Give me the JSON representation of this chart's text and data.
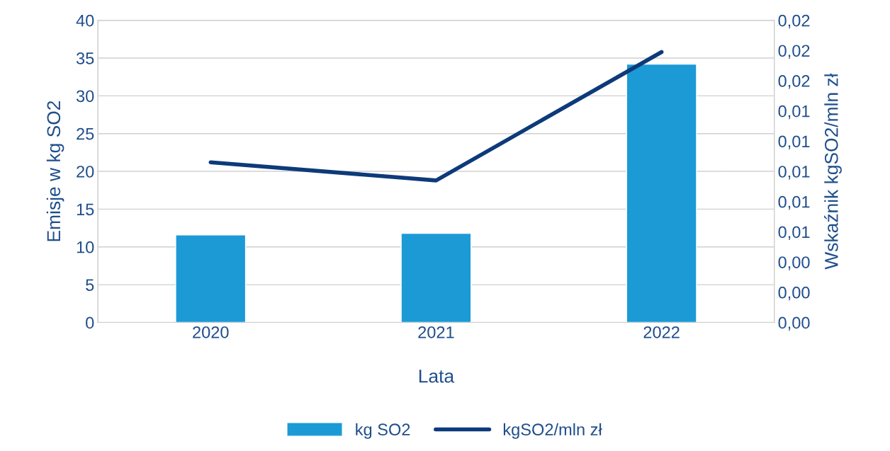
{
  "chart_data": {
    "type": "bar",
    "categories": [
      "2020",
      "2021",
      "2022"
    ],
    "xlabel": "Lata",
    "ylabel": "Emisje w kg SO2",
    "y2label": "Wskaźnik kgSO2/mln zł",
    "series": [
      {
        "name": "kg SO2",
        "color": "#1b9ad6",
        "values": [
          11.6,
          11.8,
          34.2
        ]
      },
      {
        "name": "kgSO2/mln zł",
        "type": "line",
        "axis": "y2",
        "color": "#0d3a7a",
        "values": [
          0.0106,
          0.0094,
          0.0179
        ]
      }
    ],
    "ylim": [
      0,
      40
    ],
    "yticks": [
      0,
      5,
      10,
      15,
      20,
      25,
      30,
      35,
      40
    ],
    "y2lim": [
      0,
      0.02
    ],
    "y2ticks": [
      {
        "value": 0,
        "label": "0,00"
      },
      {
        "value": 0.002,
        "label": "0,00"
      },
      {
        "value": 0.004,
        "label": "0,00"
      },
      {
        "value": 0.006,
        "label": "0,01"
      },
      {
        "value": 0.008,
        "label": "0,01"
      },
      {
        "value": 0.01,
        "label": "0,01"
      },
      {
        "value": 0.012,
        "label": "0,01"
      },
      {
        "value": 0.014,
        "label": "0,01"
      },
      {
        "value": 0.016,
        "label": "0,02"
      },
      {
        "value": 0.018,
        "label": "0,02"
      },
      {
        "value": 0.02,
        "label": "0,02"
      }
    ],
    "grid": "y",
    "legend": "bottom",
    "marker": "none",
    "line_style": "solid"
  }
}
